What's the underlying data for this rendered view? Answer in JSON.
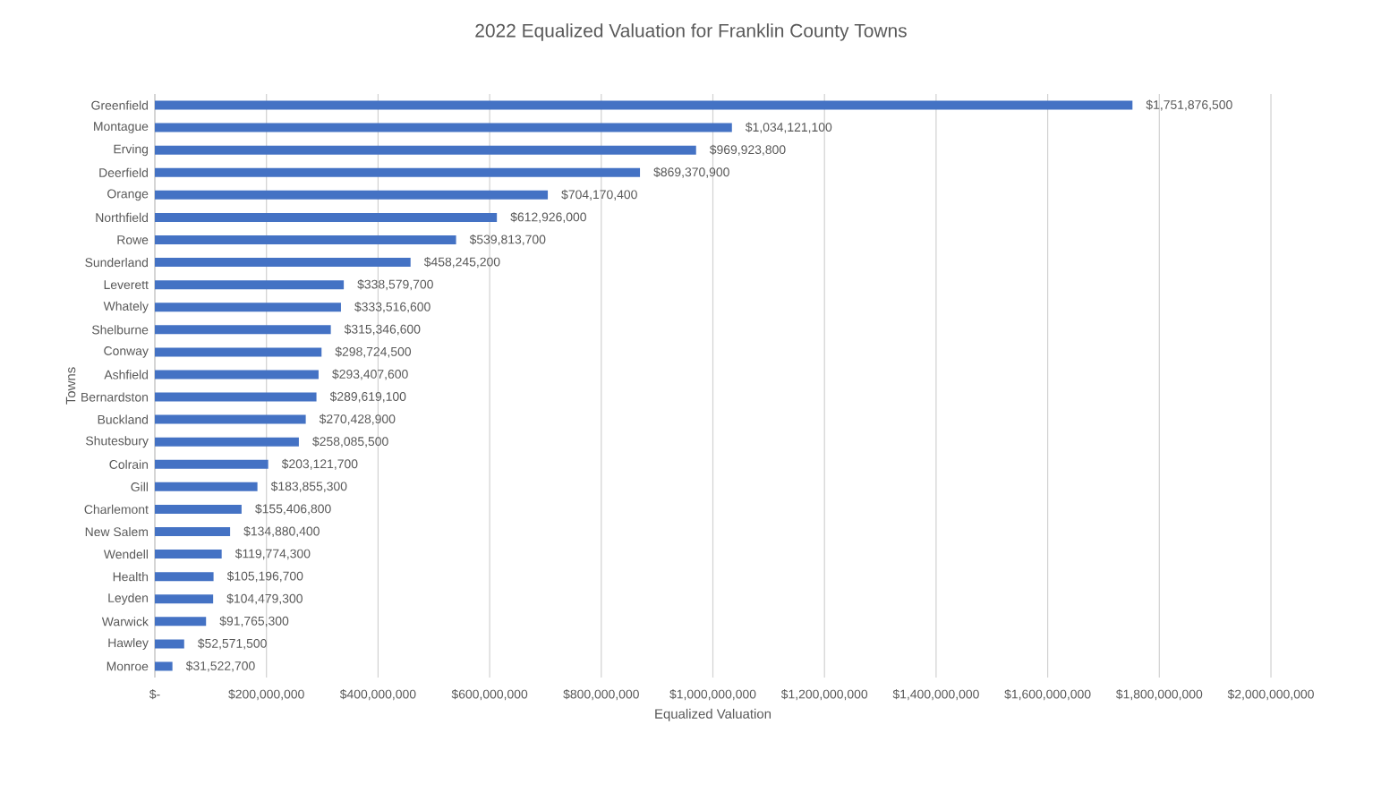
{
  "chart_data": {
    "type": "bar",
    "orientation": "horizontal",
    "title": "2022 Equalized Valuation for Franklin County Towns",
    "xlabel": "Equalized Valuation",
    "ylabel": "Towns",
    "categories": [
      "Greenfield",
      "Montague",
      "Erving",
      "Deerfield",
      "Orange",
      "Northfield",
      "Rowe",
      "Sunderland",
      "Leverett",
      "Whately",
      "Shelburne",
      "Conway",
      "Ashfield",
      "Bernardston",
      "Buckland",
      "Shutesbury",
      "Colrain",
      "Gill",
      "Charlemont",
      "New Salem",
      "Wendell",
      "Health",
      "Leyden",
      "Warwick",
      "Hawley",
      "Monroe"
    ],
    "values": [
      1751876500,
      1034121100,
      969923800,
      869370900,
      704170400,
      612926000,
      539813700,
      458245200,
      338579700,
      333516600,
      315346600,
      298724500,
      293407600,
      289619100,
      270428900,
      258085500,
      203121700,
      183855300,
      155406800,
      134880400,
      119774300,
      105196700,
      104479300,
      91765300,
      52571500,
      31522700
    ],
    "value_labels": [
      "$1,751,876,500",
      "$1,034,121,100",
      "$969,923,800",
      "$869,370,900",
      "$704,170,400",
      "$612,926,000",
      "$539,813,700",
      "$458,245,200",
      "$338,579,700",
      "$333,516,600",
      "$315,346,600",
      "$298,724,500",
      "$293,407,600",
      "$289,619,100",
      "$270,428,900",
      "$258,085,500",
      "$203,121,700",
      "$183,855,300",
      "$155,406,800",
      "$134,880,400",
      "$119,774,300",
      "$105,196,700",
      "$104,479,300",
      "$91,765,300",
      "$52,571,500",
      "$31,522,700"
    ],
    "color": "#4472c4",
    "xlim": [
      0,
      2000000000
    ],
    "xticks": [
      {
        "value": 0,
        "label": "$-"
      },
      {
        "value": 200000000,
        "label": "$200,000,000"
      },
      {
        "value": 400000000,
        "label": "$400,000,000"
      },
      {
        "value": 600000000,
        "label": "$600,000,000"
      },
      {
        "value": 800000000,
        "label": "$800,000,000"
      },
      {
        "value": 1000000000,
        "label": "$1,000,000,000"
      },
      {
        "value": 1200000000,
        "label": "$1,200,000,000"
      },
      {
        "value": 1400000000,
        "label": "$1,400,000,000"
      },
      {
        "value": 1600000000,
        "label": "$1,600,000,000"
      },
      {
        "value": 1800000000,
        "label": "$1,800,000,000"
      },
      {
        "value": 2000000000,
        "label": "$2,000,000,000"
      }
    ],
    "grid": "x"
  }
}
